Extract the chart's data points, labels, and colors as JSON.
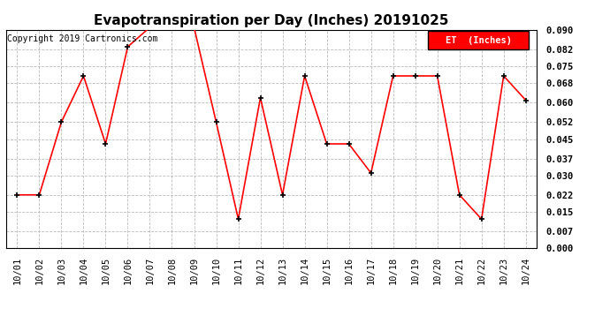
{
  "title": "Evapotranspiration per Day (Inches) 20191025",
  "copyright": "Copyright 2019 Cartronics.com",
  "legend_label": "ET  (Inches)",
  "dates": [
    "10/01",
    "10/02",
    "10/03",
    "10/04",
    "10/05",
    "10/06",
    "10/07",
    "10/08",
    "10/09",
    "10/10",
    "10/11",
    "10/12",
    "10/13",
    "10/14",
    "10/15",
    "10/16",
    "10/17",
    "10/18",
    "10/19",
    "10/20",
    "10/21",
    "10/22",
    "10/23",
    "10/24"
  ],
  "values": [
    0.022,
    0.022,
    0.052,
    0.071,
    0.043,
    0.083,
    0.091,
    0.091,
    0.091,
    0.052,
    0.012,
    0.062,
    0.022,
    0.071,
    0.043,
    0.043,
    0.031,
    0.071,
    0.071,
    0.071,
    0.022,
    0.012,
    0.071,
    0.061
  ],
  "ylim": [
    0.0,
    0.09
  ],
  "yticks": [
    0.0,
    0.007,
    0.015,
    0.022,
    0.03,
    0.037,
    0.045,
    0.052,
    0.06,
    0.068,
    0.075,
    0.082,
    0.09
  ],
  "line_color": "red",
  "marker_color": "black",
  "legend_bg": "red",
  "legend_text_color": "white",
  "background_color": "white",
  "grid_color": "#bbbbbb",
  "title_fontsize": 11,
  "copyright_fontsize": 7,
  "tick_fontsize": 7.5
}
